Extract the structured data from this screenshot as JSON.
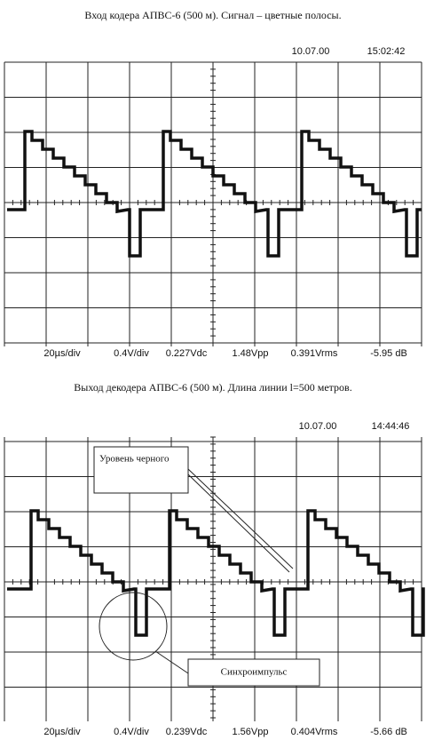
{
  "panels": [
    {
      "caption": "Вход кодера АПВС-6 (500 м). Сигнал – цветные полосы.",
      "date": "10.07.00",
      "time": "15:02:42",
      "readouts": [
        "20µs/div",
        "0.4V/div",
        "0.227Vdc",
        "1.48Vpp",
        "0.391Vrms",
        "-5.95 dB"
      ]
    },
    {
      "caption": "Выход декодера АПВС-6 (500 м). Длина линии l=500 метров.",
      "date": "10.07.00",
      "time": "14:44:46",
      "readouts": [
        "20µs/div",
        "0.4V/div",
        "0.239Vdc",
        "1.56Vpp",
        "0.404Vrms",
        "-5.66 dB"
      ],
      "annotations": [
        "Уровень черного",
        "Синхроимпульс"
      ]
    }
  ]
}
